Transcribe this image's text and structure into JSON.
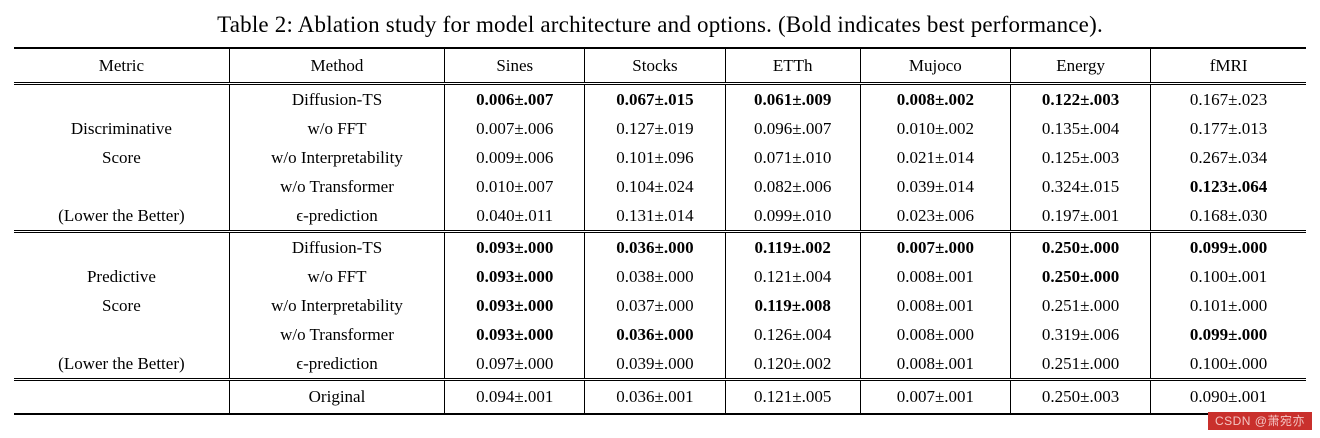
{
  "caption": "Table 2: Ablation study for model architecture and options. (Bold indicates best performance).",
  "table": {
    "headers": [
      "Metric",
      "Method",
      "Sines",
      "Stocks",
      "ETTh",
      "Mujoco",
      "Energy",
      "fMRI"
    ],
    "groups": [
      {
        "metric_lines": [
          "Discriminative",
          "Score"
        ],
        "metric_note": "(Lower the Better)",
        "rows": [
          {
            "method": "Diffusion-TS",
            "cells": [
              {
                "t": "0.006±.007",
                "b": true
              },
              {
                "t": "0.067±.015",
                "b": true
              },
              {
                "t": "0.061±.009",
                "b": true
              },
              {
                "t": "0.008±.002",
                "b": true
              },
              {
                "t": "0.122±.003",
                "b": true
              },
              {
                "t": "0.167±.023",
                "b": false
              }
            ]
          },
          {
            "method": "w/o FFT",
            "cells": [
              {
                "t": "0.007±.006",
                "b": false
              },
              {
                "t": "0.127±.019",
                "b": false
              },
              {
                "t": "0.096±.007",
                "b": false
              },
              {
                "t": "0.010±.002",
                "b": false
              },
              {
                "t": "0.135±.004",
                "b": false
              },
              {
                "t": "0.177±.013",
                "b": false
              }
            ]
          },
          {
            "method": "w/o Interpretability",
            "cells": [
              {
                "t": "0.009±.006",
                "b": false
              },
              {
                "t": "0.101±.096",
                "b": false
              },
              {
                "t": "0.071±.010",
                "b": false
              },
              {
                "t": "0.021±.014",
                "b": false
              },
              {
                "t": "0.125±.003",
                "b": false
              },
              {
                "t": "0.267±.034",
                "b": false
              }
            ]
          },
          {
            "method": "w/o Transformer",
            "cells": [
              {
                "t": "0.010±.007",
                "b": false
              },
              {
                "t": "0.104±.024",
                "b": false
              },
              {
                "t": "0.082±.006",
                "b": false
              },
              {
                "t": "0.039±.014",
                "b": false
              },
              {
                "t": "0.324±.015",
                "b": false
              },
              {
                "t": "0.123±.064",
                "b": true
              }
            ]
          },
          {
            "method": "ϵ-prediction",
            "cells": [
              {
                "t": "0.040±.011",
                "b": false
              },
              {
                "t": "0.131±.014",
                "b": false
              },
              {
                "t": "0.099±.010",
                "b": false
              },
              {
                "t": "0.023±.006",
                "b": false
              },
              {
                "t": "0.197±.001",
                "b": false
              },
              {
                "t": "0.168±.030",
                "b": false
              }
            ]
          }
        ]
      },
      {
        "metric_lines": [
          "Predictive",
          "Score"
        ],
        "metric_note": "(Lower the Better)",
        "rows": [
          {
            "method": "Diffusion-TS",
            "cells": [
              {
                "t": "0.093±.000",
                "b": true
              },
              {
                "t": "0.036±.000",
                "b": true
              },
              {
                "t": "0.119±.002",
                "b": true
              },
              {
                "t": "0.007±.000",
                "b": true
              },
              {
                "t": "0.250±.000",
                "b": true
              },
              {
                "t": "0.099±.000",
                "b": true
              }
            ]
          },
          {
            "method": "w/o FFT",
            "cells": [
              {
                "t": "0.093±.000",
                "b": true
              },
              {
                "t": "0.038±.000",
                "b": false
              },
              {
                "t": "0.121±.004",
                "b": false
              },
              {
                "t": "0.008±.001",
                "b": false
              },
              {
                "t": "0.250±.000",
                "b": true
              },
              {
                "t": "0.100±.001",
                "b": false
              }
            ]
          },
          {
            "method": "w/o Interpretability",
            "cells": [
              {
                "t": "0.093±.000",
                "b": true
              },
              {
                "t": "0.037±.000",
                "b": false
              },
              {
                "t": "0.119±.008",
                "b": true
              },
              {
                "t": "0.008±.001",
                "b": false
              },
              {
                "t": "0.251±.000",
                "b": false
              },
              {
                "t": "0.101±.000",
                "b": false
              }
            ]
          },
          {
            "method": "w/o Transformer",
            "cells": [
              {
                "t": "0.093±.000",
                "b": true
              },
              {
                "t": "0.036±.000",
                "b": true
              },
              {
                "t": "0.126±.004",
                "b": false
              },
              {
                "t": "0.008±.000",
                "b": false
              },
              {
                "t": "0.319±.006",
                "b": false
              },
              {
                "t": "0.099±.000",
                "b": true
              }
            ]
          },
          {
            "method": "ϵ-prediction",
            "cells": [
              {
                "t": "0.097±.000",
                "b": false
              },
              {
                "t": "0.039±.000",
                "b": false
              },
              {
                "t": "0.120±.002",
                "b": false
              },
              {
                "t": "0.008±.001",
                "b": false
              },
              {
                "t": "0.251±.000",
                "b": false
              },
              {
                "t": "0.100±.000",
                "b": false
              }
            ]
          }
        ]
      },
      {
        "metric_lines": [],
        "metric_note": "",
        "rows": [
          {
            "method": "Original",
            "cells": [
              {
                "t": "0.094±.001",
                "b": false
              },
              {
                "t": "0.036±.001",
                "b": false
              },
              {
                "t": "0.121±.005",
                "b": false
              },
              {
                "t": "0.007±.001",
                "b": false
              },
              {
                "t": "0.250±.003",
                "b": false
              },
              {
                "t": "0.090±.001",
                "b": false
              }
            ]
          }
        ]
      }
    ]
  },
  "watermark": {
    "text": "CSDN @萧宛亦",
    "bg": "#c9302c",
    "fg": "#f3c4c2"
  }
}
